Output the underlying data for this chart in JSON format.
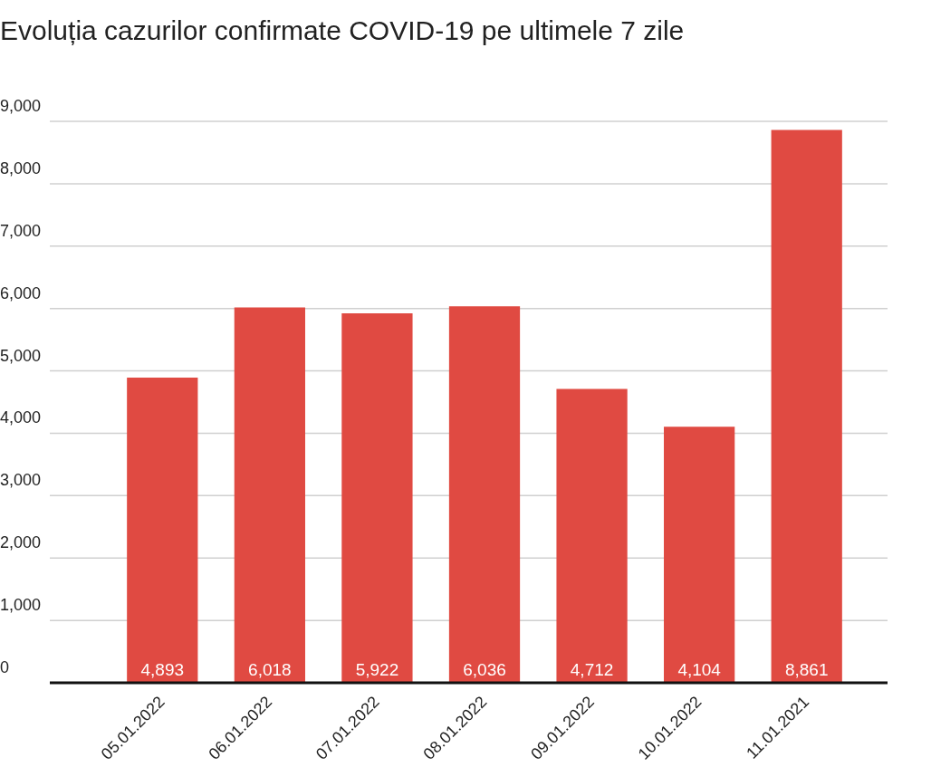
{
  "chart_data": {
    "type": "bar",
    "title": "Evoluția cazurilor confirmate COVID-19 pe ultimele 7 zile",
    "categories": [
      "05.01.2022",
      "06.01.2022",
      "07.01.2022",
      "08.01.2022",
      "09.01.2022",
      "10.01.2022",
      "11.01.2021"
    ],
    "values": [
      4893,
      6018,
      5922,
      6036,
      4712,
      4104,
      8861
    ],
    "color": "#e04a42",
    "ylim": [
      0,
      9000
    ],
    "yticks": [
      {
        "value": 0,
        "label": "0"
      },
      {
        "value": 1000,
        "label": "1,000"
      },
      {
        "value": 2000,
        "label": "2,000"
      },
      {
        "value": 3000,
        "label": "3,000"
      },
      {
        "value": 4000,
        "label": "4,000"
      },
      {
        "value": 5000,
        "label": "5,000"
      },
      {
        "value": 6000,
        "label": "6,000"
      },
      {
        "value": 7000,
        "label": "7,000"
      },
      {
        "value": 8000,
        "label": "8,000"
      },
      {
        "value": 9000,
        "label": "9,000"
      }
    ],
    "value_labels": [
      "4,893",
      "6,018",
      "5,922",
      "6,036",
      "4,712",
      "4,104",
      "8,861"
    ],
    "grid": "y",
    "legend": false
  }
}
